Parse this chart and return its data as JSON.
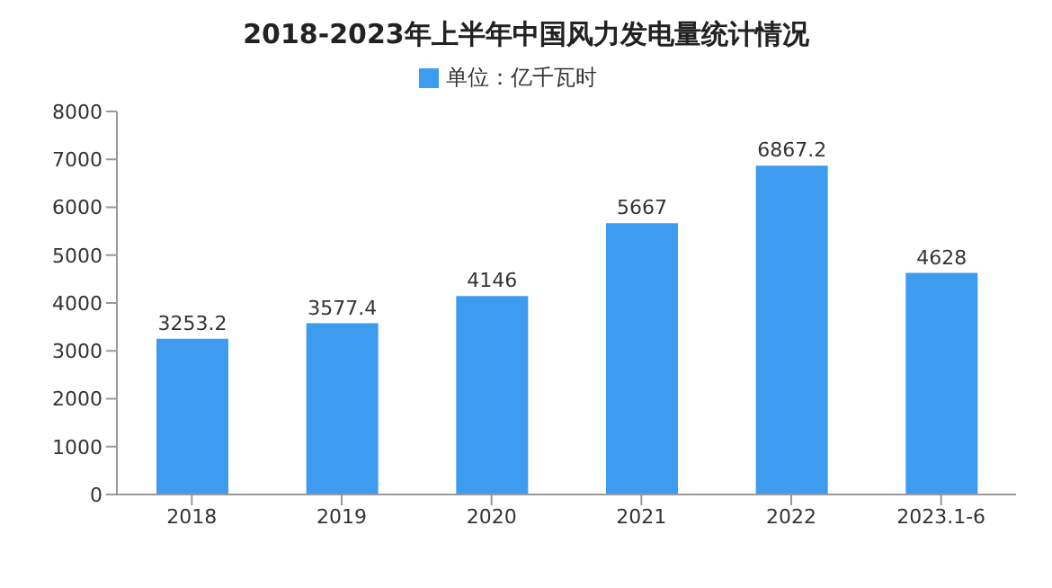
{
  "chart_data": {
    "type": "bar",
    "title": "2018-2023年上半年中国风力发电量统计情况",
    "categories": [
      "2018",
      "2019",
      "2020",
      "2021",
      "2022",
      "2023.1-6"
    ],
    "series": [
      {
        "name": "单位：亿千瓦时",
        "color": "#3d9bf0",
        "values": [
          3253.2,
          3577.4,
          4146,
          5667,
          6867.2,
          4628
        ]
      }
    ],
    "ylim": [
      0,
      8000
    ],
    "yticks": [
      0,
      1000,
      2000,
      3000,
      4000,
      5000,
      6000,
      7000,
      8000
    ],
    "data_labels": true,
    "legend": "top",
    "grid": false
  }
}
